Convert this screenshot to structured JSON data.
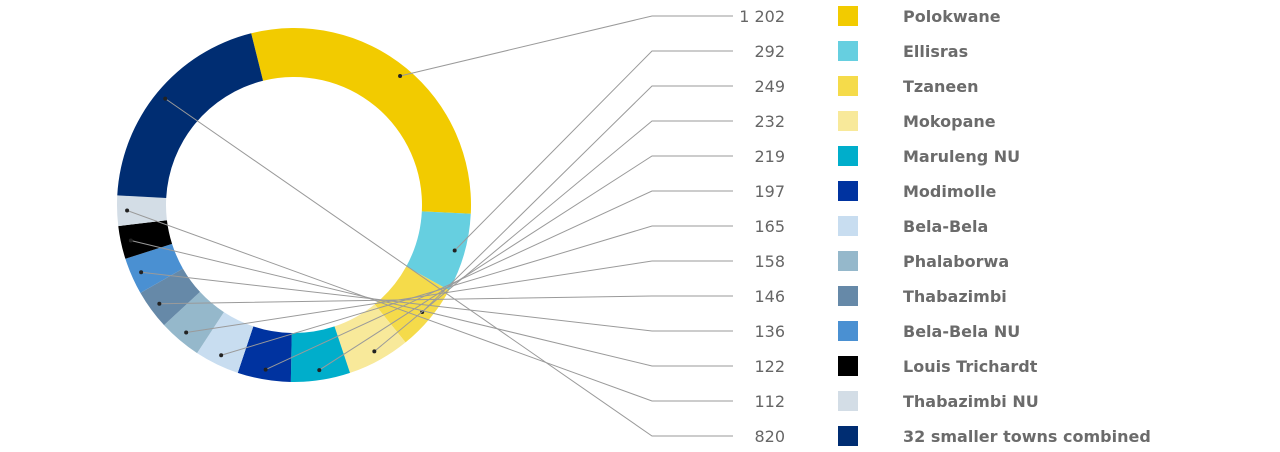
{
  "chart_data": {
    "type": "pie",
    "donut": true,
    "categories": [
      "Polokwane",
      "Ellisras",
      "Tzaneen",
      "Mokopane",
      "Maruleng NU",
      "Modimolle",
      "Bela-Bela",
      "Phalaborwa",
      "Thabazimbi",
      "Bela-Bela NU",
      "Louis Trichardt",
      "Thabazimbi NU",
      "32 smaller towns combined"
    ],
    "values": [
      1202,
      292,
      249,
      232,
      219,
      197,
      165,
      158,
      146,
      136,
      122,
      112,
      820
    ],
    "value_labels": [
      "1 202",
      "292",
      "249",
      "232",
      "219",
      "197",
      "165",
      "158",
      "146",
      "136",
      "122",
      "112",
      "820"
    ],
    "colors": [
      "#F2CB00",
      "#66CFE0",
      "#F5DB4A",
      "#F8E99A",
      "#00AECB",
      "#0033A0",
      "#C8DDF0",
      "#95B8CB",
      "#6689A8",
      "#4A90D2",
      "#000000",
      "#D3DDE6",
      "#002D72"
    ],
    "legend_position": "right",
    "title": ""
  }
}
